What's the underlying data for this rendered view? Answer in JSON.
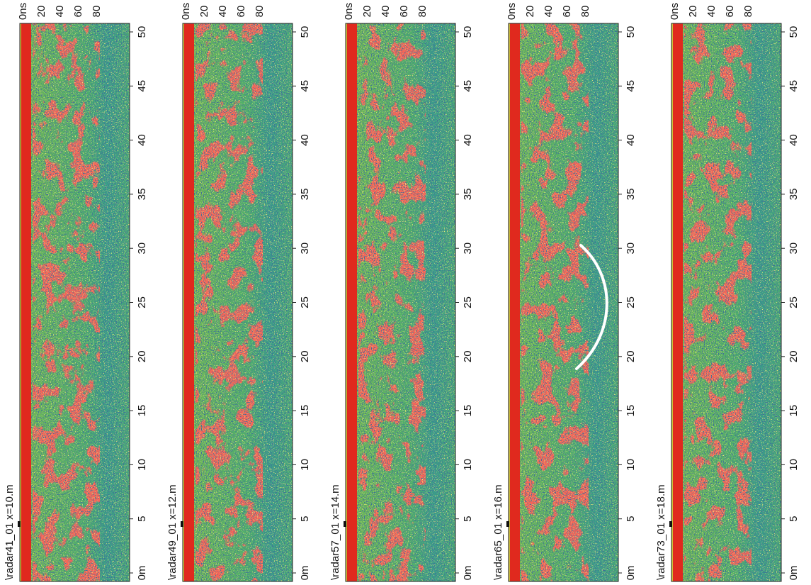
{
  "distance_ticks": [
    "0m",
    "5",
    "10",
    "15",
    "20",
    "25",
    "30",
    "35",
    "40",
    "45",
    "50"
  ],
  "time_ticks": [
    "0ns",
    "20",
    "40",
    "60",
    "80"
  ],
  "panels": [
    {
      "label": "\\radar41_01   x=10.m"
    },
    {
      "label": "\\radar49_01   x=12.m"
    },
    {
      "label": "\\radar57_01   x=14.m"
    },
    {
      "label": "\\radar65_01   x=16.m"
    },
    {
      "label": "\\radar73_01   x=18.m"
    }
  ]
}
